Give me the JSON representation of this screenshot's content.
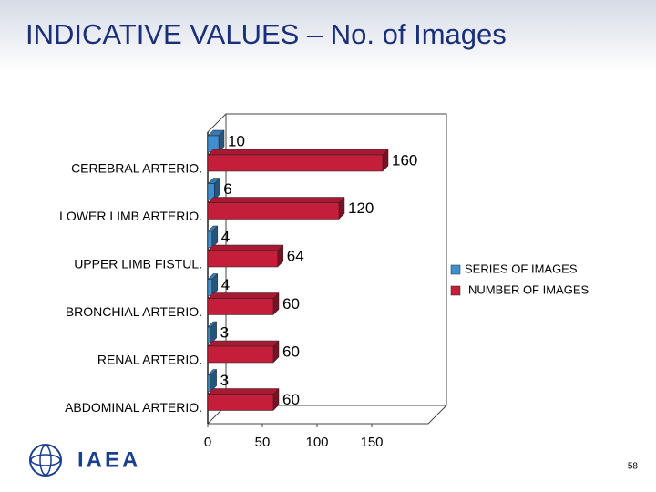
{
  "header": {
    "title": "INDICATIVE VALUES – No. of Images"
  },
  "chart_data": {
    "type": "bar",
    "orientation": "horizontal",
    "categories": [
      "CEREBRAL ARTERIO.",
      "LOWER LIMB ARTERIO.",
      "UPPER LIMB FISTUL.",
      "BRONCHIAL ARTERIO.",
      "RENAL ARTERIO.",
      "ABDOMINAL ARTERIO."
    ],
    "series": [
      {
        "name": "SERIES OF IMAGES",
        "color": "#3f8fd0",
        "values": [
          10,
          6,
          4,
          4,
          3,
          3
        ]
      },
      {
        "name": "NUMBER OF IMAGES",
        "color": "#c41e3a",
        "values": [
          160,
          120,
          64,
          60,
          60,
          60
        ]
      }
    ],
    "xlim": [
      0,
      200
    ],
    "xticks": [
      0,
      50,
      100,
      150
    ],
    "legend": "right"
  },
  "footer": {
    "logo": "IAEA",
    "page": "58"
  }
}
